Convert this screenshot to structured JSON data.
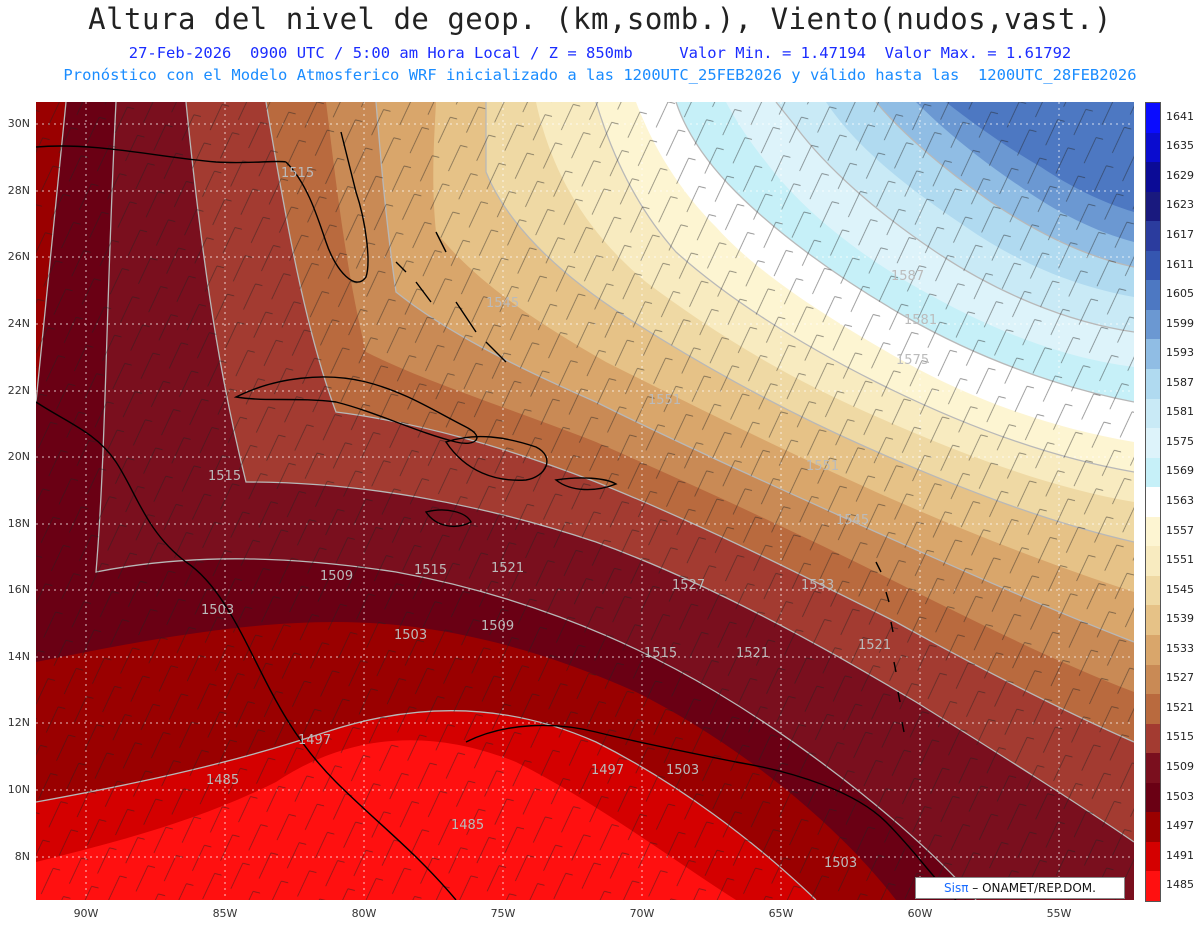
{
  "title": "Altura del nivel de geop. (km,somb.), Viento(nudos,vast.)",
  "subtitle_line1": "27-Feb-2026  0900 UTC / 5:00 am Hora Local / Z = 850mb     Valor Min. = 1.47194  Valor Max. = 1.61792",
  "subtitle_line2": "Pronóstico con el Modelo Atmosferico WRF inicializado a las 1200UTC_25FEB2026 y válido hasta las  1200UTC_28FEB2026",
  "lat_labels": [
    "30N",
    "28N",
    "26N",
    "24N",
    "22N",
    "20N",
    "18N",
    "16N",
    "14N",
    "12N",
    "10N",
    "8N"
  ],
  "lon_labels": [
    "90W",
    "85W",
    "80W",
    "75W",
    "70W",
    "65W",
    "60W",
    "55W"
  ],
  "colorbar_labels": [
    "1641",
    "1635",
    "1629",
    "1623",
    "1617",
    "1611",
    "1605",
    "1599",
    "1593",
    "1587",
    "1581",
    "1575",
    "1569",
    "1563",
    "1557",
    "1551",
    "1545",
    "1539",
    "1533",
    "1527",
    "1521",
    "1515",
    "1509",
    "1503",
    "1497",
    "1491",
    "1485"
  ],
  "colorbar_colors": [
    "#0a0cff",
    "#0a0ccf",
    "#0b0b96",
    "#19197e",
    "#2b3c9e",
    "#3556b0",
    "#4d78c2",
    "#6b98d2",
    "#90bde4",
    "#b0daf0",
    "#c9eaf6",
    "#ddf3fa",
    "#c6f0f8",
    "#ffffff",
    "#fdf5d2",
    "#f8ebc0",
    "#efd9a4",
    "#e6c287",
    "#d9a66b",
    "#c98a55",
    "#b96a3e",
    "#a33b31",
    "#7a0f1e",
    "#6a0014",
    "#9a0000",
    "#d40000",
    "#ff1010"
  ],
  "contour_labels": [
    "1515",
    "1545",
    "1587",
    "1581",
    "1575",
    "1551",
    "1551",
    "1545",
    "1515",
    "1509",
    "1515",
    "1521",
    "1503",
    "1503",
    "1509",
    "1527",
    "1533",
    "1515",
    "1521",
    "1521",
    "1497",
    "1485",
    "1497",
    "1503",
    "1485",
    "1503"
  ],
  "credit": {
    "brand": "Sisπ",
    "text": "– ONAMET/REP.DOM."
  }
}
